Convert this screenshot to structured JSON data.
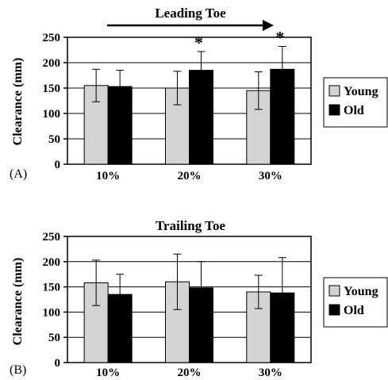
{
  "chart_data": [
    {
      "type": "bar",
      "panel_label": "(A)",
      "title": "Leading Toe",
      "title_has_arrow": true,
      "ylabel": "Clearance (mm)",
      "xlabel": "",
      "ylim": [
        0,
        250
      ],
      "yticks": [
        "0",
        "50",
        "100",
        "150",
        "200",
        "250"
      ],
      "categories": [
        "10%",
        "20%",
        "30%"
      ],
      "grid": true,
      "legend_position": "right",
      "series": [
        {
          "name": "Young",
          "color": "#d3d3d3",
          "values": [
            155,
            150,
            145
          ],
          "errors": [
            32,
            33,
            37
          ]
        },
        {
          "name": "Old",
          "color": "#000000",
          "values": [
            153,
            185,
            187
          ],
          "errors": [
            32,
            37,
            45
          ]
        }
      ],
      "annotations": [
        {
          "text": "*",
          "category_index": 1,
          "series_index": 1
        },
        {
          "text": "*",
          "category_index": 2,
          "series_index": 1
        }
      ]
    },
    {
      "type": "bar",
      "panel_label": "(B)",
      "title": "Trailing Toe",
      "title_has_arrow": false,
      "ylabel": "Clearance (mm)",
      "xlabel": "",
      "ylim": [
        0,
        250
      ],
      "yticks": [
        "0",
        "50",
        "100",
        "150",
        "200",
        "250"
      ],
      "categories": [
        "10%",
        "20%",
        "30%"
      ],
      "grid": true,
      "legend_position": "right",
      "series": [
        {
          "name": "Young",
          "color": "#d3d3d3",
          "values": [
            158,
            160,
            140
          ],
          "errors": [
            45,
            55,
            33
          ]
        },
        {
          "name": "Old",
          "color": "#000000",
          "values": [
            135,
            148,
            138
          ],
          "errors": [
            40,
            52,
            70
          ]
        }
      ],
      "annotations": []
    }
  ]
}
